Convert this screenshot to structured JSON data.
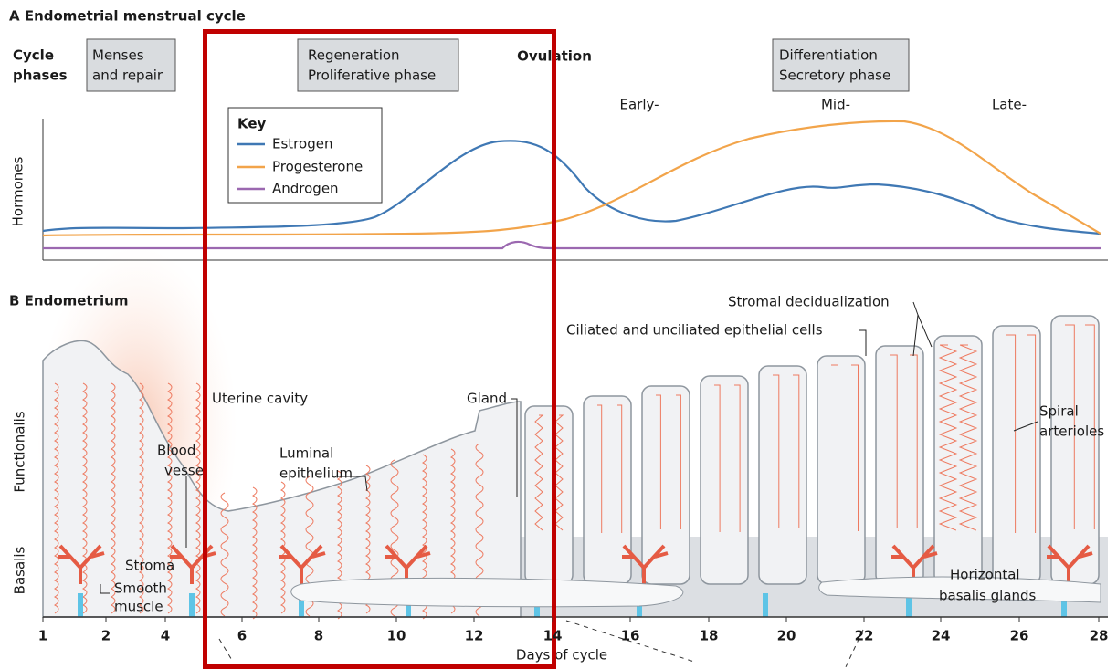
{
  "panel_a": {
    "title": "A Endometrial menstrual cycle",
    "row_label": [
      "Cycle",
      "phases"
    ],
    "phases": [
      [
        "Menses",
        "and repair"
      ],
      [
        "Regeneration",
        "Proliferative phase"
      ],
      [
        "Ovulation"
      ],
      [
        "Differentiation",
        "Secretory phase"
      ]
    ],
    "subphases": [
      "Early-",
      "Mid-",
      "Late-"
    ],
    "y_label": "Hormones",
    "key": {
      "title": "Key",
      "items": [
        "Estrogen",
        "Progesterone",
        "Androgen"
      ]
    }
  },
  "panel_b": {
    "title": "B Endometrium",
    "layers": [
      "Functionalis",
      "Basalis"
    ],
    "labels": [
      [
        "Uterine cavity"
      ],
      [
        "Blood",
        "vessel"
      ],
      [
        "Luminal",
        "epithelium"
      ],
      [
        "Gland"
      ],
      [
        "Stroma"
      ],
      [
        "Smooth",
        "muscle"
      ],
      [
        "Stromal decidualization"
      ],
      [
        "Ciliated and unciliated epithelial cells"
      ],
      [
        "Spiral",
        "arterioles"
      ],
      [
        "Horizontal",
        "basalis glands"
      ]
    ],
    "x_ticks": [
      "1",
      "2",
      "4",
      "6",
      "8",
      "10",
      "12",
      "14",
      "16",
      "18",
      "20",
      "22",
      "24",
      "26",
      "28"
    ],
    "x_label": "Days of cycle"
  }
}
